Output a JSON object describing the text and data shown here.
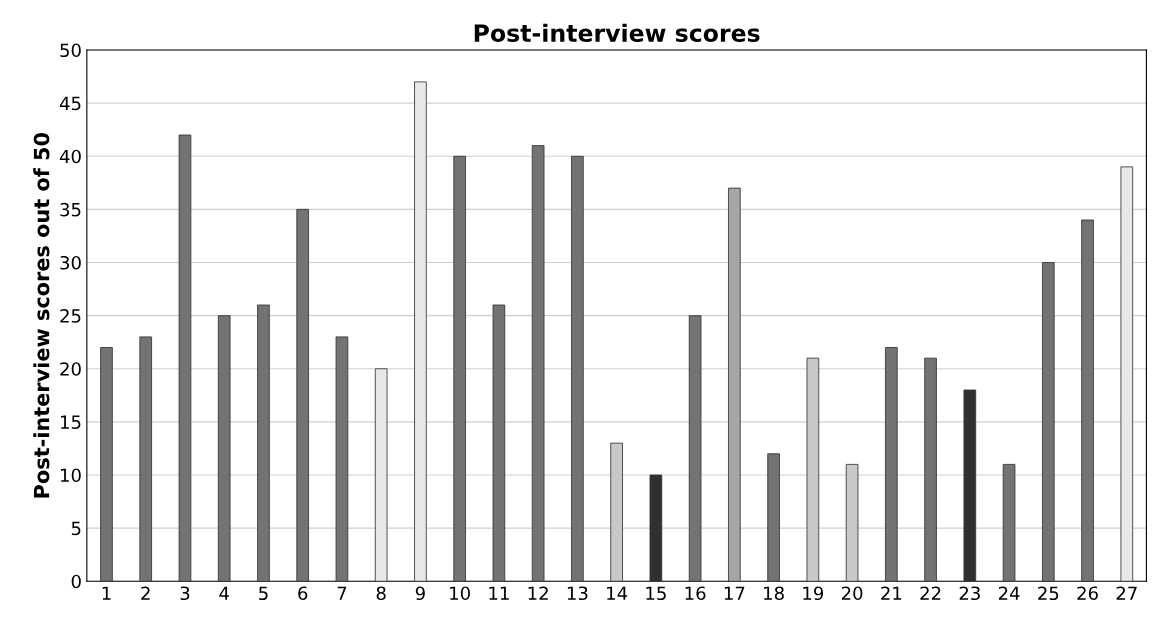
{
  "chart_data": {
    "type": "bar",
    "title": "Post-interview scores",
    "ylabel": "Post-interview scores out of 50",
    "categories": [
      "1",
      "2",
      "3",
      "4",
      "5",
      "6",
      "7",
      "8",
      "9",
      "10",
      "11",
      "12",
      "13",
      "14",
      "15",
      "16",
      "17",
      "18",
      "19",
      "20",
      "21",
      "22",
      "23",
      "24",
      "25",
      "26",
      "27"
    ],
    "values": [
      22,
      23,
      42,
      25,
      26,
      35,
      23,
      20,
      47,
      40,
      26,
      41,
      40,
      13,
      10,
      25,
      37,
      12,
      21,
      11,
      22,
      21,
      18,
      11,
      30,
      34,
      39
    ],
    "colors": [
      "#737373",
      "#737373",
      "#737373",
      "#737373",
      "#737373",
      "#737373",
      "#737373",
      "#e8e8e8",
      "#e8e8e8",
      "#737373",
      "#737373",
      "#737373",
      "#737373",
      "#c8c8c8",
      "#303030",
      "#737373",
      "#a6a6a6",
      "#737373",
      "#c8c8c8",
      "#c8c8c8",
      "#737373",
      "#737373",
      "#303030",
      "#737373",
      "#737373",
      "#737373",
      "#e8e8e8"
    ],
    "ylim": [
      0,
      50
    ],
    "yticks": [
      0,
      5,
      10,
      15,
      20,
      25,
      30,
      35,
      40,
      45,
      50
    ],
    "grid": "y"
  }
}
